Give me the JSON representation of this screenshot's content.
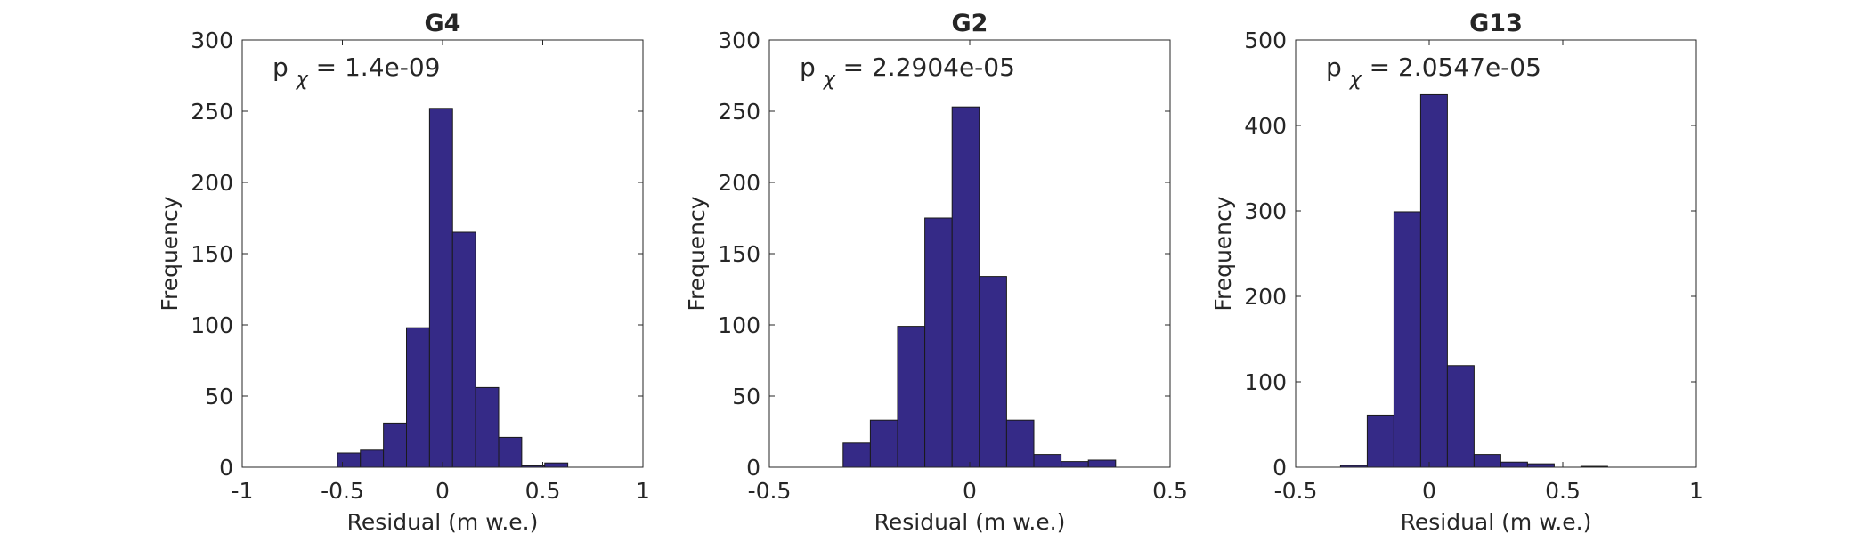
{
  "colors": {
    "bar_fill": "#352a87",
    "bar_edge": "#1a1a1a",
    "axis": "#262626",
    "background": "#ffffff"
  },
  "chart_data": [
    {
      "type": "bar",
      "title": "G4",
      "xlabel": "Residual (m w.e.)",
      "ylabel": "Frequency",
      "xlim": [
        -1,
        1
      ],
      "ylim": [
        0,
        300
      ],
      "xticks": [
        "-1",
        "-0.5",
        "0",
        "0.5",
        "1"
      ],
      "xtick_values": [
        -1,
        -0.5,
        0,
        0.5,
        1
      ],
      "yticks": [
        "0",
        "50",
        "100",
        "150",
        "200",
        "250",
        "300"
      ],
      "ytick_values": [
        0,
        50,
        100,
        150,
        200,
        250,
        300
      ],
      "annotation": {
        "base": "p",
        "subscript": "χ",
        "text": " = 1.4e-09"
      },
      "bins": [
        {
          "x0": -0.525,
          "x1": -0.41,
          "value": 10
        },
        {
          "x0": -0.41,
          "x1": -0.295,
          "value": 12
        },
        {
          "x0": -0.295,
          "x1": -0.18,
          "value": 31
        },
        {
          "x0": -0.18,
          "x1": -0.065,
          "value": 98
        },
        {
          "x0": -0.065,
          "x1": 0.05,
          "value": 252
        },
        {
          "x0": 0.05,
          "x1": 0.165,
          "value": 165
        },
        {
          "x0": 0.165,
          "x1": 0.28,
          "value": 56
        },
        {
          "x0": 0.28,
          "x1": 0.395,
          "value": 21
        },
        {
          "x0": 0.395,
          "x1": 0.51,
          "value": 1
        },
        {
          "x0": 0.51,
          "x1": 0.625,
          "value": 3
        }
      ],
      "grid": false
    },
    {
      "type": "bar",
      "title": "G2",
      "xlabel": "Residual (m w.e.)",
      "ylabel": "Frequency",
      "xlim": [
        -0.5,
        0.5
      ],
      "ylim": [
        0,
        300
      ],
      "xticks": [
        "-0.5",
        "0",
        "0.5"
      ],
      "xtick_values": [
        -0.5,
        0,
        0.5
      ],
      "yticks": [
        "0",
        "50",
        "100",
        "150",
        "200",
        "250",
        "300"
      ],
      "ytick_values": [
        0,
        50,
        100,
        150,
        200,
        250,
        300
      ],
      "annotation": {
        "base": "p",
        "subscript": "χ",
        "text": " = 2.2904e-05"
      },
      "bins": [
        {
          "x0": -0.316,
          "x1": -0.248,
          "value": 17
        },
        {
          "x0": -0.248,
          "x1": -0.18,
          "value": 33
        },
        {
          "x0": -0.18,
          "x1": -0.112,
          "value": 99
        },
        {
          "x0": -0.112,
          "x1": -0.044,
          "value": 175
        },
        {
          "x0": -0.044,
          "x1": 0.024,
          "value": 253
        },
        {
          "x0": 0.024,
          "x1": 0.092,
          "value": 134
        },
        {
          "x0": 0.092,
          "x1": 0.16,
          "value": 33
        },
        {
          "x0": 0.16,
          "x1": 0.228,
          "value": 9
        },
        {
          "x0": 0.228,
          "x1": 0.296,
          "value": 4
        },
        {
          "x0": 0.296,
          "x1": 0.364,
          "value": 5
        }
      ],
      "grid": false
    },
    {
      "type": "bar",
      "title": "G13",
      "xlabel": "Residual (m w.e.)",
      "ylabel": "Frequency",
      "xlim": [
        -0.5,
        1
      ],
      "ylim": [
        0,
        500
      ],
      "xticks": [
        "-0.5",
        "0",
        "0.5",
        "1"
      ],
      "xtick_values": [
        -0.5,
        0,
        0.5,
        1
      ],
      "yticks": [
        "0",
        "100",
        "200",
        "300",
        "400",
        "500"
      ],
      "ytick_values": [
        0,
        100,
        200,
        300,
        400,
        500
      ],
      "annotation": {
        "base": "p",
        "subscript": "χ",
        "text": " = 2.0547e-05"
      },
      "bins": [
        {
          "x0": -0.332,
          "x1": -0.232,
          "value": 2
        },
        {
          "x0": -0.232,
          "x1": -0.132,
          "value": 61
        },
        {
          "x0": -0.132,
          "x1": -0.032,
          "value": 299
        },
        {
          "x0": -0.032,
          "x1": 0.068,
          "value": 436
        },
        {
          "x0": 0.068,
          "x1": 0.168,
          "value": 119
        },
        {
          "x0": 0.168,
          "x1": 0.268,
          "value": 15
        },
        {
          "x0": 0.268,
          "x1": 0.368,
          "value": 6
        },
        {
          "x0": 0.368,
          "x1": 0.468,
          "value": 4
        },
        {
          "x0": 0.468,
          "x1": 0.568,
          "value": 0
        },
        {
          "x0": 0.568,
          "x1": 0.668,
          "value": 1
        }
      ],
      "grid": false
    }
  ]
}
